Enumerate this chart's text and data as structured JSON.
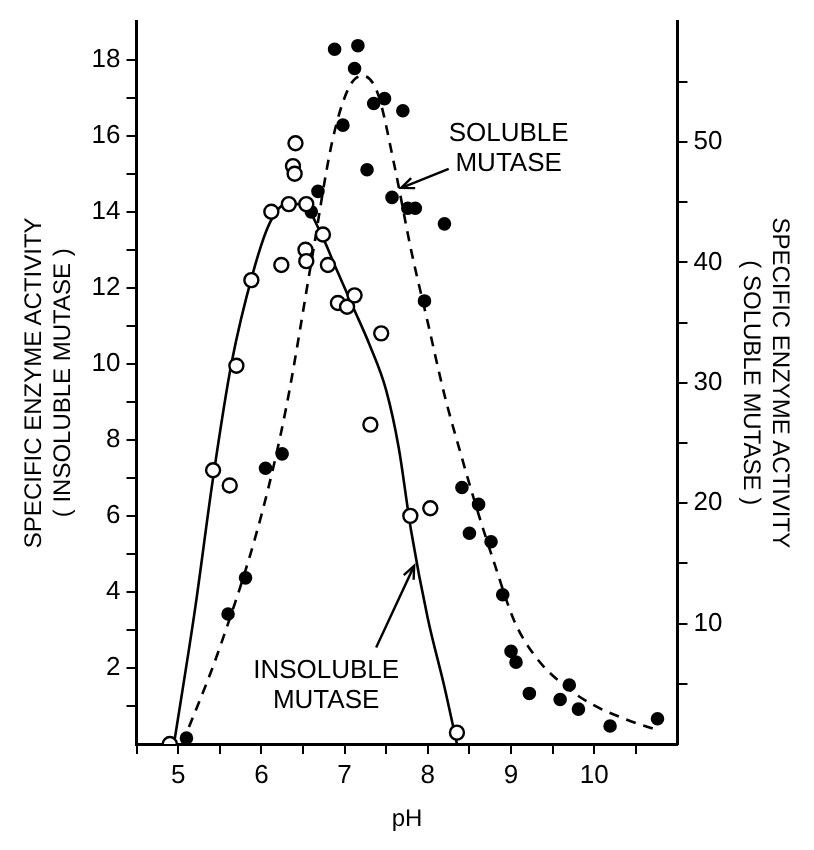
{
  "chart_data": {
    "type": "scatter",
    "xlabel": "pH",
    "ylabel": "SPECIFIC ENZYME ACTIVITY\n( INSOLUBLE MUTASE )",
    "y2label": "SPECIFIC ENZYME ACTIVITY\n( SOLUBLE MUTASE )",
    "xlim": [
      4.5,
      11
    ],
    "xticks": [
      {
        "value": 4.5,
        "label": null
      },
      5,
      {
        "value": 5.5,
        "label": null
      },
      6,
      {
        "value": 6.5,
        "label": null
      },
      7,
      {
        "value": 7.5,
        "label": null
      },
      8,
      {
        "value": 8.5,
        "label": null
      },
      9,
      {
        "value": 9.5,
        "label": null
      },
      10,
      {
        "value": 10.5,
        "label": null
      }
    ],
    "ylim": [
      0,
      19
    ],
    "yticks": [
      {
        "value": 1,
        "label": null
      },
      2,
      {
        "value": 3,
        "label": null
      },
      4,
      {
        "value": 5,
        "label": null
      },
      6,
      {
        "value": 7,
        "label": null
      },
      8,
      {
        "value": 9,
        "label": null
      },
      10,
      {
        "value": 11,
        "label": null
      },
      12,
      {
        "value": 13,
        "label": null
      },
      14,
      {
        "value": 15,
        "label": null
      },
      16,
      {
        "value": 17,
        "label": null
      },
      18
    ],
    "y2lim": [
      0,
      60
    ],
    "y2ticks": [
      {
        "value": 5,
        "label": null
      },
      10,
      {
        "value": 15,
        "label": null
      },
      20,
      {
        "value": 25,
        "label": null
      },
      30,
      {
        "value": 35,
        "label": null
      },
      40,
      {
        "value": 45,
        "label": null
      },
      50,
      {
        "value": 55,
        "label": null
      }
    ],
    "grid": false,
    "legend": false,
    "series": [
      {
        "type": "scatter",
        "marker": "circle",
        "color": "#000000",
        "x": [
          4.9,
          5.42,
          5.62,
          5.7,
          5.88,
          6.12,
          6.24,
          6.33,
          6.38,
          6.4,
          6.41,
          6.53,
          6.54,
          6.54,
          6.74,
          6.8,
          6.92,
          7.03,
          7.12,
          7.31,
          7.44,
          7.79,
          8.03,
          8.35
        ],
        "values": [
          0,
          7.2,
          6.8,
          9.95,
          12.2,
          14.0,
          12.6,
          14.2,
          15.2,
          15.0,
          15.8,
          13.0,
          12.7,
          14.2,
          13.4,
          12.6,
          11.6,
          11.5,
          11.8,
          8.4,
          10.8,
          6.0,
          6.2,
          0.3
        ]
      },
      {
        "type": "line",
        "marker": "none",
        "line_style": "solid",
        "color": "#000000",
        "x": [
          4.95,
          5.2,
          5.42,
          5.64,
          5.9,
          6.1,
          6.3,
          6.5,
          6.7,
          6.9,
          7.1,
          7.3,
          7.5,
          7.65,
          7.8,
          8.0,
          8.2,
          8.35
        ],
        "values": [
          0,
          3.5,
          7,
          10,
          12.4,
          13.7,
          14.2,
          14.2,
          13.5,
          12.5,
          11.5,
          10.5,
          9.3,
          7.8,
          5.6,
          3.3,
          1.5,
          0
        ]
      },
      {
        "type": "scatter",
        "axis": "y2",
        "marker": "circle",
        "color": "#000000",
        "x": [
          5.1,
          5.6,
          5.81,
          6.05,
          6.25,
          6.6,
          6.68,
          6.88,
          6.98,
          7.12,
          7.16,
          7.27,
          7.35,
          7.48,
          7.57,
          7.7,
          7.76,
          7.85,
          7.96,
          8.2,
          8.41,
          8.5,
          8.61,
          8.76,
          8.9,
          9.0,
          9.06,
          9.22,
          9.59,
          9.7,
          9.81,
          10.19,
          10.76
        ],
        "values": [
          0.5,
          10.8,
          13.8,
          22.9,
          24.1,
          44.2,
          45.9,
          57.7,
          51.4,
          56.1,
          58.0,
          47.7,
          53.2,
          53.6,
          45.4,
          52.6,
          44.5,
          44.5,
          36.8,
          43.2,
          21.3,
          17.5,
          19.9,
          16.8,
          12.4,
          7.7,
          6.8,
          4.2,
          3.7,
          4.9,
          2.9,
          1.5,
          2.1
        ]
      },
      {
        "type": "line",
        "axis": "y2",
        "marker": "none",
        "line_style": "dashed",
        "color": "#000000",
        "x": [
          5.05,
          5.5,
          6.0,
          6.3,
          6.6,
          6.85,
          7.05,
          7.22,
          7.4,
          7.6,
          7.8,
          8.0,
          8.2,
          8.4,
          8.6,
          8.8,
          9.04,
          9.3,
          9.65,
          10.0,
          10.4,
          10.78
        ],
        "values": [
          0,
          8,
          19,
          28,
          40,
          50,
          54.5,
          55.5,
          54,
          48,
          41,
          35,
          29,
          24,
          19.3,
          15,
          10.2,
          7.2,
          4.8,
          3.2,
          2,
          1.1
        ]
      }
    ],
    "annotations": [
      {
        "text": "SOLUBLE MUTASE",
        "x": 7.65,
        "y": 14.6
      },
      {
        "text": "INSOLUBLE MUTASE",
        "x": 7.86,
        "y": 4.8
      }
    ]
  }
}
